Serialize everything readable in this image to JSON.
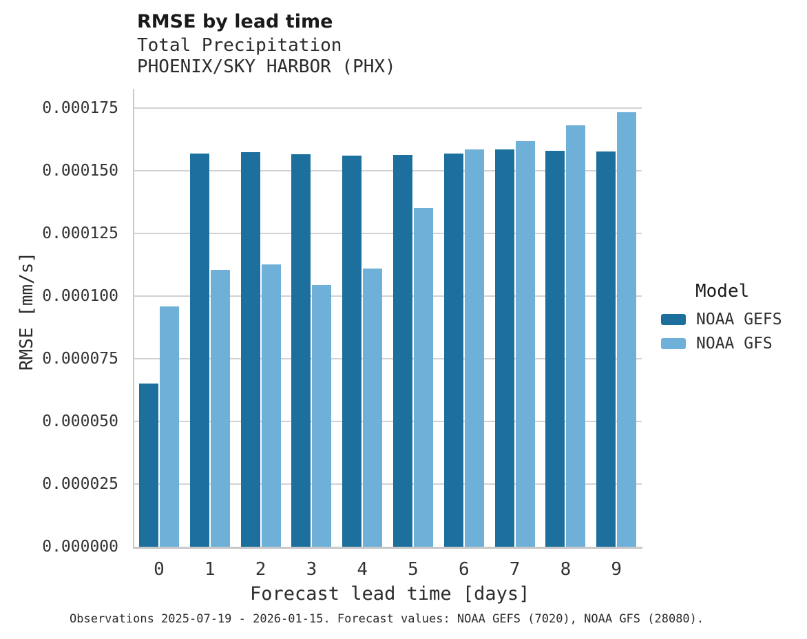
{
  "header": {
    "title": "RMSE by lead time",
    "subtitle_variable": "Total Precipitation",
    "subtitle_station": "PHOENIX/SKY HARBOR (PHX)"
  },
  "axes": {
    "xlabel": "Forecast lead time [days]",
    "ylabel": "RMSE [mm/s]"
  },
  "legend": {
    "title": "Model",
    "items": [
      {
        "label": "NOAA GEFS",
        "color": "#1d6f9e"
      },
      {
        "label": "NOAA GFS",
        "color": "#6fb0d8"
      }
    ]
  },
  "caption": "Observations 2025-07-19 - 2026-01-15. Forecast values: NOAA GEFS (7020), NOAA GFS (28080).",
  "colors": {
    "gefs_bar": "#1d6f9e",
    "gfs_bar": "#6fb0d8",
    "gridline": "#d2d2d2",
    "axis_line": "#c9c9c9",
    "text": "#2e2e2e"
  },
  "chart_data": {
    "type": "bar",
    "title": "RMSE by lead time",
    "subtitle": [
      "Total Precipitation",
      "PHOENIX/SKY HARBOR (PHX)"
    ],
    "xlabel": "Forecast lead time [days]",
    "ylabel": "RMSE [mm/s]",
    "categories": [
      "0",
      "1",
      "2",
      "3",
      "4",
      "5",
      "6",
      "7",
      "8",
      "9"
    ],
    "series": [
      {
        "name": "NOAA GEFS",
        "color": "#1d6f9e",
        "values": [
          6.5e-05,
          0.000157,
          0.0001574,
          0.0001565,
          0.0001561,
          0.0001563,
          0.0001569,
          0.0001586,
          0.0001581,
          0.0001577
        ]
      },
      {
        "name": "NOAA GFS",
        "color": "#6fb0d8",
        "values": [
          9.59e-05,
          0.0001104,
          0.0001127,
          0.0001044,
          0.0001109,
          0.0001353,
          0.0001585,
          0.0001618,
          0.0001681,
          0.0001735
        ]
      }
    ],
    "ylim": [
      0,
      0.0001827
    ],
    "yticks": [
      0,
      2.5e-05,
      5e-05,
      7.5e-05,
      0.0001,
      0.000125,
      0.00015,
      0.000175
    ],
    "ytick_labels": [
      "0.000000",
      "0.000025",
      "0.000050",
      "0.000075",
      "0.000100",
      "0.000125",
      "0.000150",
      "0.000175"
    ],
    "grid": "horizontal",
    "legend_position": "center-right",
    "legend_title": "Model"
  }
}
